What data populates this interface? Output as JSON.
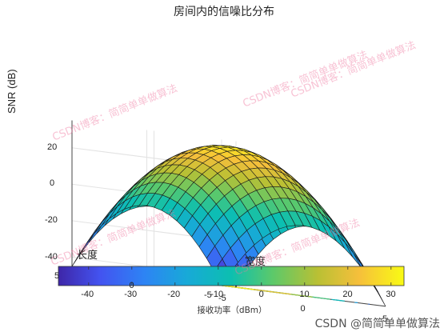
{
  "chart_data": {
    "type": "surface",
    "title": "房间内的信噪比分布",
    "zlabel": "SNR (dB)",
    "xlabel": "宽度",
    "ylabel": "长度",
    "x_ticks": [
      "-5",
      "0",
      "5"
    ],
    "y_ticks": [
      "-5",
      "0",
      "5"
    ],
    "z_ticks": [
      "20",
      "0",
      "-20",
      "-40"
    ],
    "xlim": [
      -5,
      5
    ],
    "ylim": [
      -5,
      5
    ],
    "zlim": [
      -45,
      35
    ],
    "surface": {
      "peak_snr_db": 32,
      "corner_snr_db": -45,
      "peak_location": [
        0,
        0
      ],
      "grid": "21x21"
    },
    "contour_projection": true,
    "colormap": "parula",
    "colorbar": {
      "label": "接收功率（dBm）",
      "ticks": [
        "-40",
        "-30",
        "-20",
        "-10",
        "0",
        "10",
        "20",
        "30"
      ],
      "range": [
        -47,
        33
      ]
    }
  },
  "watermark": "CSDN博客：简简单单做算法",
  "credit": "CSDN @简简单单做算法"
}
